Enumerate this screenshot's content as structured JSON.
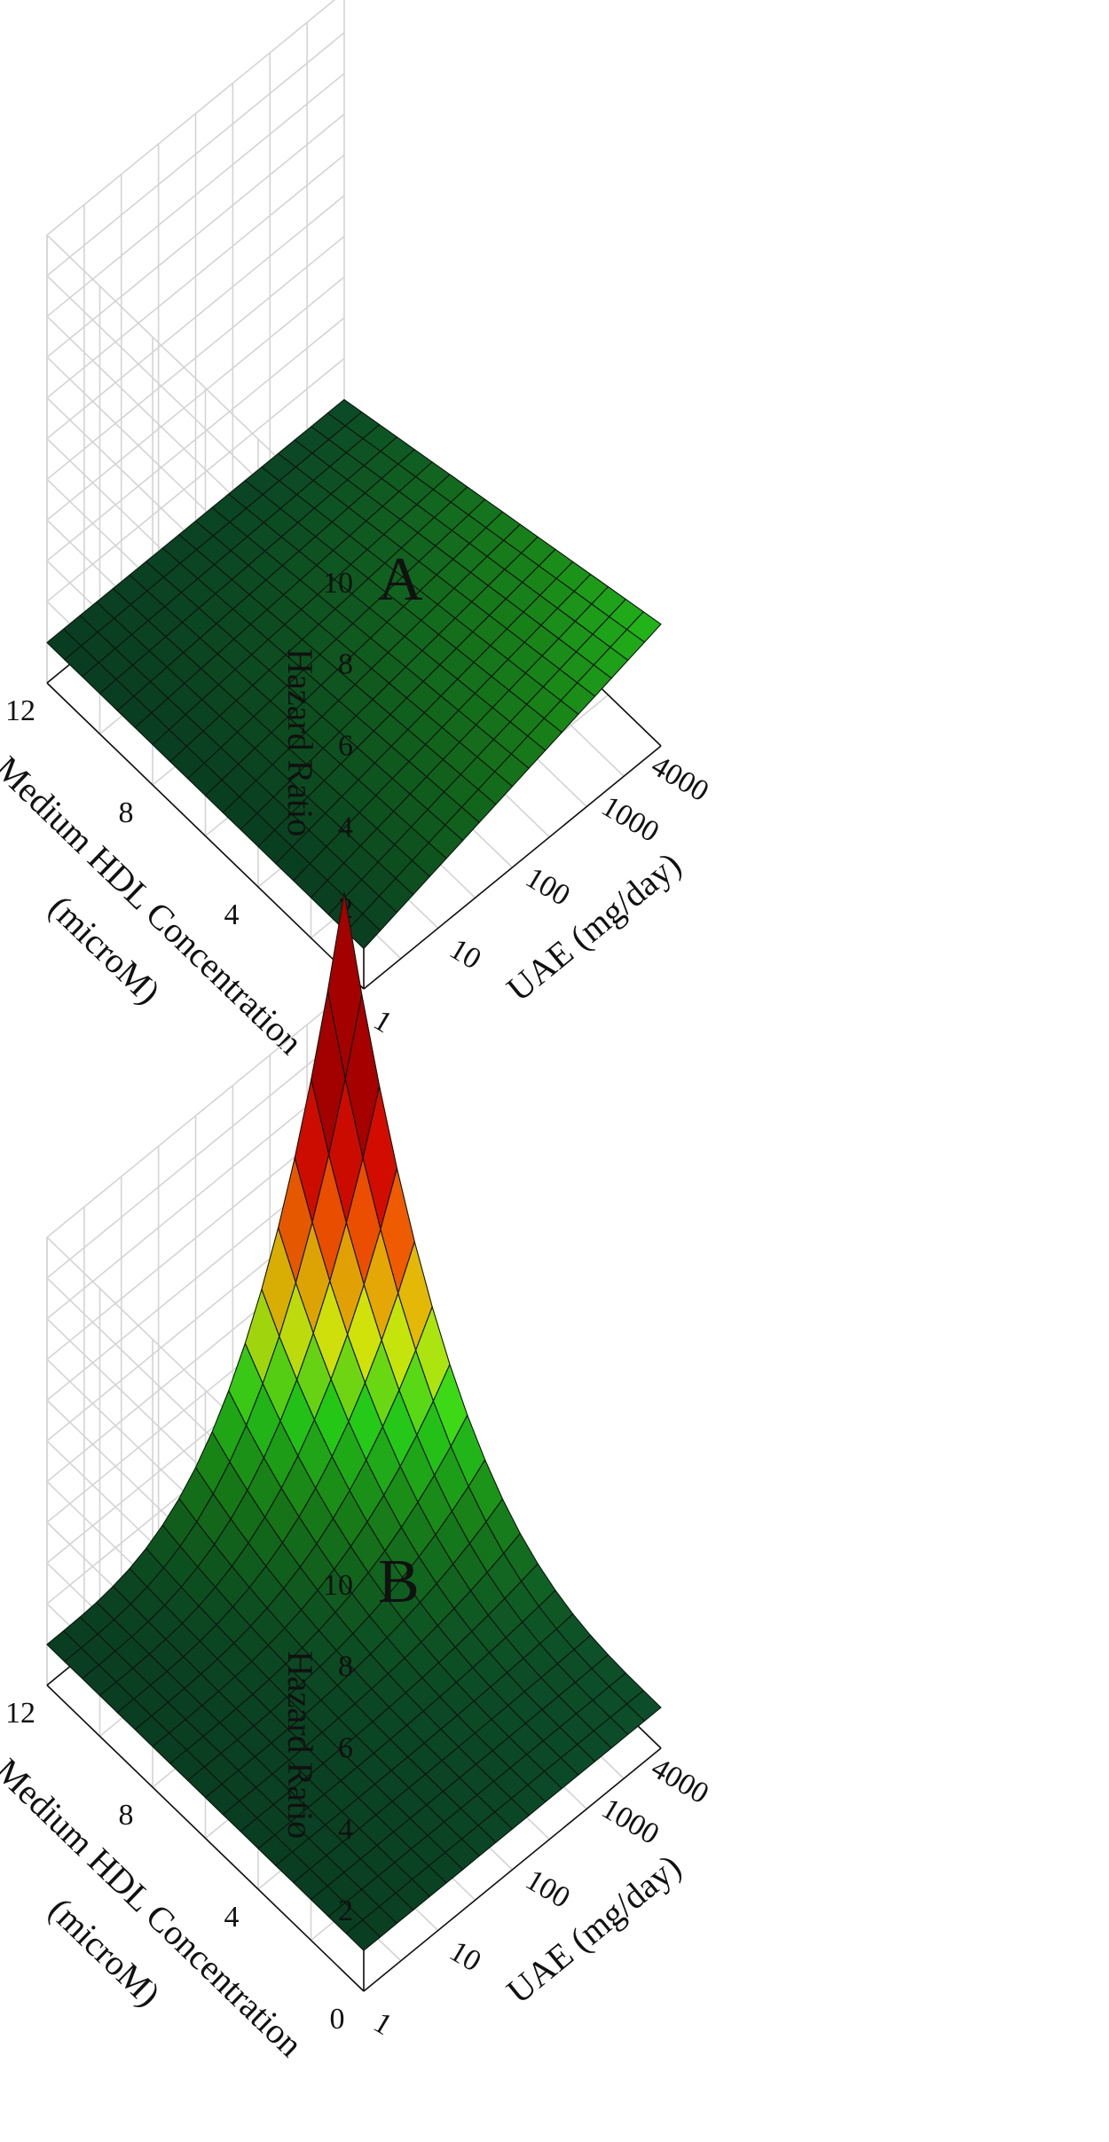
{
  "chart_data": [
    {
      "type": "surface",
      "panel_label": "A",
      "zlabel": "Hazard Ratio",
      "xlabel": "UAE (mg/day)",
      "ylabel_line1": "Medium HDL Concentration",
      "ylabel_line2": "(microM)",
      "x_scale": "log",
      "x_ticks": [
        "1",
        "10",
        "100",
        "1000",
        "4000"
      ],
      "y_ticks": [
        "0",
        "4",
        "8",
        "12"
      ],
      "z_ticks": [
        "2",
        "4",
        "6",
        "8",
        "10"
      ],
      "xlim": [
        1,
        4000
      ],
      "ylim": [
        0,
        12
      ],
      "zlim": [
        0,
        11
      ],
      "grid": true,
      "surface_corners": {
        "uae_1_hdl_0": 0.99,
        "uae_1_hdl_12": 0.99,
        "uae_4000_hdl_0": 2.99,
        "uae_4000_hdl_12": 0.99
      },
      "colormap": [
        "#0b4a2c",
        "#1a8a1a",
        "#2ae21a",
        "#e8f80c",
        "#ff8c00",
        "#ff1500",
        "#b30000"
      ]
    },
    {
      "type": "surface",
      "panel_label": "B",
      "zlabel": "Hazard Ratio",
      "xlabel": "UAE (mg/day)",
      "ylabel_line1": "Medium HDL Concentration",
      "ylabel_line2": "(microM)",
      "x_scale": "log",
      "x_ticks": [
        "1",
        "10",
        "100",
        "1000",
        "4000"
      ],
      "y_ticks": [
        "0",
        "4",
        "8",
        "12"
      ],
      "z_ticks": [
        "2",
        "4",
        "6",
        "8",
        "10"
      ],
      "xlim": [
        1,
        4000
      ],
      "ylim": [
        0,
        12
      ],
      "zlim": [
        0,
        11
      ],
      "grid": true,
      "surface_corners": {
        "uae_1_hdl_0": 1.0,
        "uae_1_hdl_12": 1.0,
        "uae_4000_hdl_0": 1.0,
        "uae_4000_hdl_12": 13.5
      },
      "colormap": [
        "#0b4a2c",
        "#1a8a1a",
        "#2ae21a",
        "#e8f80c",
        "#ff8c00",
        "#ff1500",
        "#b30000"
      ]
    }
  ]
}
